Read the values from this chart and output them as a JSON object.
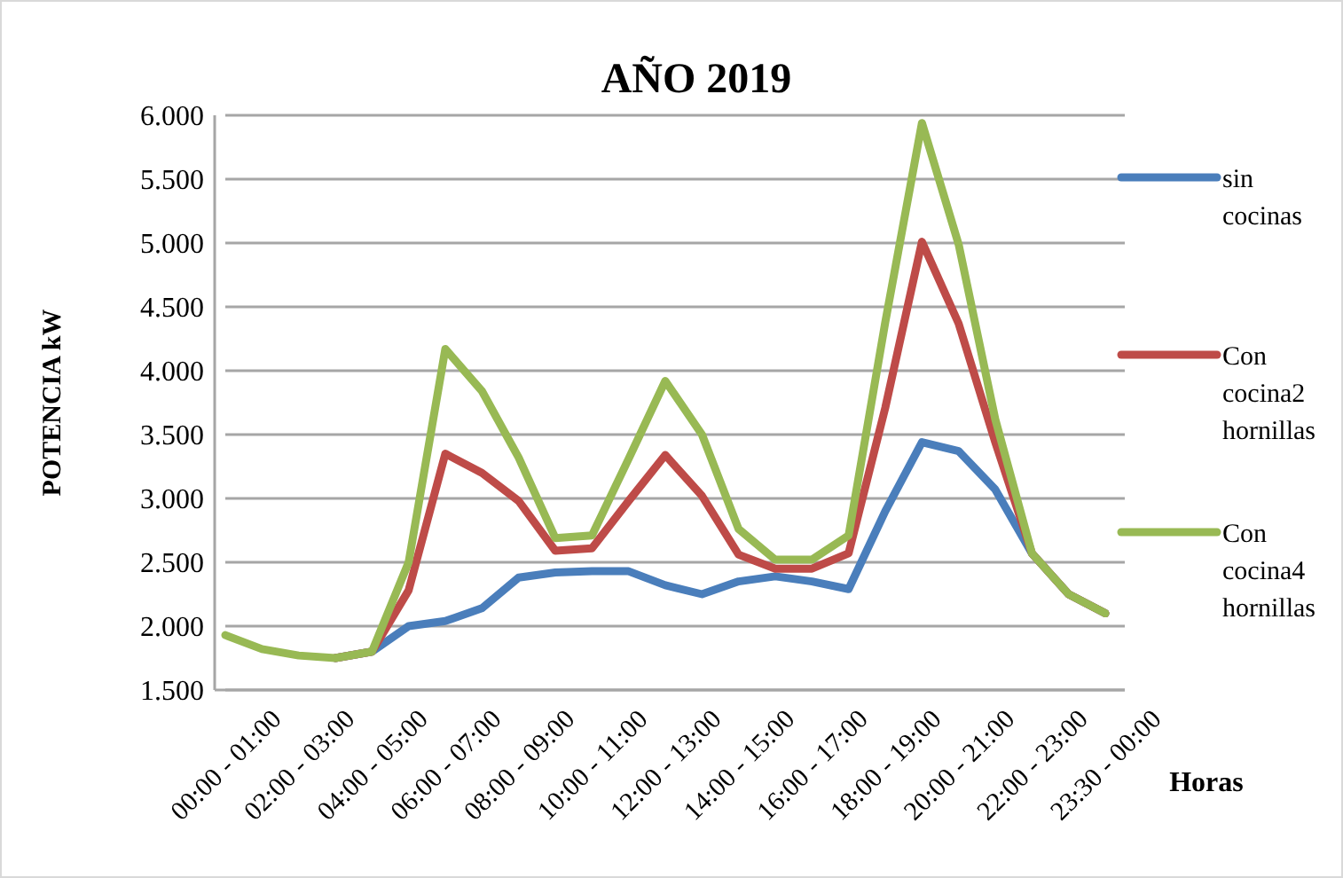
{
  "chart_data": {
    "type": "line",
    "title": "AÑO 2019",
    "xlabel": "Horas",
    "ylabel": "POTENCIA kW",
    "categories": [
      "00:00 - 01:00",
      null,
      "02:00 - 03:00",
      null,
      "04:00 - 05:00",
      null,
      "06:00 - 07:00",
      null,
      "08:00 - 09:00",
      null,
      "10:00 - 11:00",
      null,
      "12:00 - 13:00",
      null,
      "14:00 - 15:00",
      null,
      "16:00 - 17:00",
      null,
      "18:00 - 19:00",
      null,
      "20:00 - 21:00",
      null,
      "22:00 - 23:00",
      null,
      "23:30 - 00:00"
    ],
    "series": [
      {
        "name": "sin cocinas",
        "color": "#4a7ebb",
        "values": [
          null,
          null,
          null,
          1750,
          1800,
          2000,
          2040,
          2140,
          2380,
          2420,
          2430,
          2430,
          2320,
          2250,
          2350,
          2390,
          2350,
          2290,
          2900,
          3440,
          3370,
          3070,
          2570,
          2250,
          2100
        ]
      },
      {
        "name": "Con cocina2 hornillas",
        "color": "#be4b48",
        "values": [
          null,
          null,
          null,
          1750,
          1800,
          2280,
          3350,
          3200,
          2980,
          2590,
          2610,
          2980,
          3340,
          3020,
          2560,
          2450,
          2450,
          2570,
          3710,
          5010,
          4370,
          3440,
          2570,
          2250,
          2100
        ]
      },
      {
        "name": "Con cocina4 hornillas",
        "color": "#98b954",
        "values": [
          1930,
          1820,
          1770,
          1750,
          1800,
          2500,
          4170,
          3840,
          3320,
          2690,
          2710,
          3310,
          3920,
          3500,
          2760,
          2520,
          2520,
          2710,
          4380,
          5940,
          4990,
          3620,
          2570,
          2250,
          2100
        ]
      }
    ],
    "ylim": [
      1500,
      6000
    ],
    "yticks": [
      {
        "value": 1500,
        "label": "1.500"
      },
      {
        "value": 2000,
        "label": "2.000"
      },
      {
        "value": 2500,
        "label": "2.500"
      },
      {
        "value": 3000,
        "label": "3.000"
      },
      {
        "value": 3500,
        "label": "3.500"
      },
      {
        "value": 4000,
        "label": "4.000"
      },
      {
        "value": 4500,
        "label": "4.500"
      },
      {
        "value": 5000,
        "label": "5.000"
      },
      {
        "value": 5500,
        "label": "5.500"
      },
      {
        "value": 6000,
        "label": "6.000"
      }
    ],
    "grid": "y",
    "legend": "right",
    "marker": "none",
    "line_style": "solid"
  }
}
